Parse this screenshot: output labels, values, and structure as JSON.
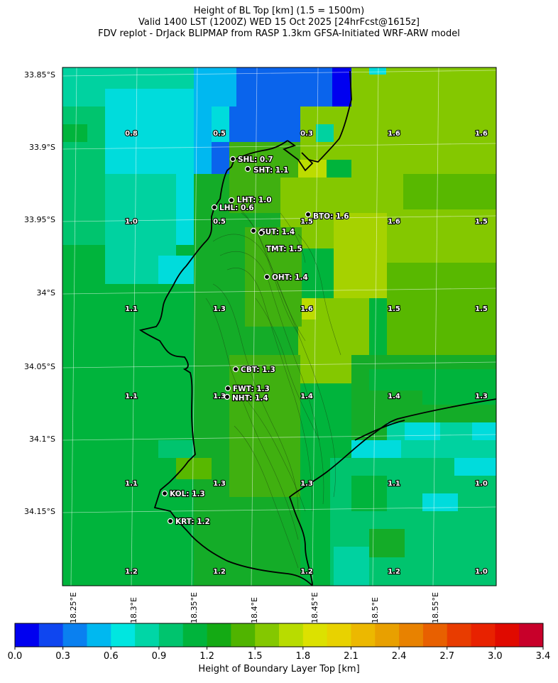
{
  "title": {
    "line1": "Height of BL Top [km] (1.5 = 1500m)",
    "line2": "Valid 1400 LST (1200Z) WED 15 Oct 2025 [24hrFcst@1615z]",
    "line3": "FDV replot - DrJack BLIPMAP from RASP 1.3km GFSA-Initiated WRF-ARW model"
  },
  "lat_ticks": [
    "33.85°S",
    "33.9°S",
    "33.95°S",
    "34°S",
    "34.05°S",
    "34.1°S",
    "34.15°S"
  ],
  "lon_ticks": [
    "18.25°E",
    "18.3°E",
    "18.35°E",
    "18.4°E",
    "18.45°E",
    "18.5°E",
    "18.55°E"
  ],
  "grid_values": [
    [
      "0.8",
      "0.5",
      "0.3",
      "1.6",
      "1.6"
    ],
    [
      "1.0",
      "0.5",
      "1.5",
      "1.6",
      "1.5"
    ],
    [
      "1.1",
      "1.3",
      "1.6",
      "1.5",
      "1.5"
    ],
    [
      "1.1",
      "1.3",
      "1.4",
      "1.4",
      "1.3"
    ],
    [
      "1.1",
      "1.3",
      "1.3",
      "1.1",
      "1.0"
    ],
    [
      "1.2",
      "1.2",
      "1.2",
      "1.2",
      "1.0"
    ]
  ],
  "sites": [
    {
      "label": "SHL: 0.7"
    },
    {
      "label": "SHT: 1.1"
    },
    {
      "label": "LHT: 1.0"
    },
    {
      "label": "LHL: 0.6"
    },
    {
      "label": "BTO: 1.6"
    },
    {
      "label": "GUT: 1.4"
    },
    {
      "label": "TMT: 1.5"
    },
    {
      "label": "OHT: 1.4"
    },
    {
      "label": "CBT: 1.3"
    },
    {
      "label": "FWT: 1.3"
    },
    {
      "label": "NHT: 1.4"
    },
    {
      "label": "KOL: 1.3"
    },
    {
      "label": "KRT: 1.2"
    }
  ],
  "colorbar": {
    "label": "Height of Boundary Layer Top [km]",
    "ticks": [
      "0.0",
      "0.3",
      "0.6",
      "0.9",
      "1.2",
      "1.5",
      "1.8",
      "2.1",
      "2.4",
      "2.7",
      "3.0",
      "3.4"
    ],
    "colors": [
      "#0000f0",
      "#0f46f0",
      "#0a80f0",
      "#00b8f0",
      "#00e6e0",
      "#00d6a6",
      "#00c46e",
      "#00b43c",
      "#14aa14",
      "#50b400",
      "#84c800",
      "#b8dc00",
      "#dce100",
      "#e8d200",
      "#ecb800",
      "#e8a000",
      "#e88200",
      "#e86000",
      "#e83c00",
      "#e82200",
      "#e00a00",
      "#c8002a"
    ]
  },
  "field_colors": {
    "c03": "#0a64ec",
    "c05": "#00b8f0",
    "c06": "#00dcdc",
    "c08": "#00d2a0",
    "c10": "#00c46e",
    "c11": "#00b43c",
    "c12": "#14ac28",
    "c13": "#40b010",
    "c14": "#58b800",
    "c15": "#84c800",
    "c16": "#a6d200",
    "c17": "#bcdc00",
    "deep": "#0000f0",
    "mid": "#0a80f0"
  }
}
